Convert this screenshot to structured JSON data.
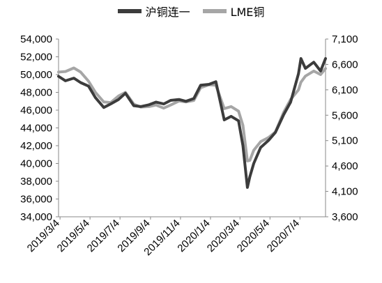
{
  "chart_data": {
    "type": "line",
    "title": "",
    "xlabel": "",
    "ylabel_left": "",
    "ylabel_right": "",
    "x_dates": [
      "2019-03-01",
      "2019-03-15",
      "2019-04-01",
      "2019-04-15",
      "2019-05-01",
      "2019-05-15",
      "2019-06-01",
      "2019-06-15",
      "2019-07-01",
      "2019-07-15",
      "2019-08-01",
      "2019-08-15",
      "2019-09-01",
      "2019-09-15",
      "2019-10-01",
      "2019-10-15",
      "2019-11-01",
      "2019-11-15",
      "2019-12-01",
      "2019-12-15",
      "2020-01-01",
      "2020-01-15",
      "2020-02-01",
      "2020-02-15",
      "2020-03-01",
      "2020-03-10",
      "2020-03-19",
      "2020-03-24",
      "2020-04-01",
      "2020-04-15",
      "2020-05-01",
      "2020-05-15",
      "2020-06-01",
      "2020-06-15",
      "2020-07-01",
      "2020-07-06",
      "2020-07-15",
      "2020-08-01",
      "2020-08-15",
      "2020-08-25"
    ],
    "x_tick_labels": [
      "2019/3/4",
      "2019/5/4",
      "2019/7/4",
      "2019/9/4",
      "2019/11/4",
      "2020/1/4",
      "2020/3/4",
      "2020/5/4",
      "2020/7/4"
    ],
    "x_tick_dates": [
      "2019-03-04",
      "2019-05-04",
      "2019-07-04",
      "2019-09-04",
      "2019-11-04",
      "2020-01-04",
      "2020-03-04",
      "2020-05-04",
      "2020-07-04"
    ],
    "left_axis": {
      "ylim": [
        34000,
        54000
      ],
      "ticks": [
        "34,000",
        "36,000",
        "38,000",
        "40,000",
        "42,000",
        "44,000",
        "46,000",
        "48,000",
        "50,000",
        "52,000",
        "54,000"
      ]
    },
    "right_axis": {
      "ylim": [
        3600,
        7100
      ],
      "ticks": [
        "3,600",
        "4,100",
        "4,600",
        "5,100",
        "5,600",
        "6,100",
        "6,600",
        "7,100"
      ]
    },
    "legend_position": "top-center",
    "series": [
      {
        "name": "沪铜连一",
        "axis": "left",
        "color": "#3c3c3c",
        "values": [
          49800,
          49300,
          49600,
          49100,
          48700,
          47400,
          46300,
          46700,
          47200,
          47900,
          46500,
          46400,
          46600,
          46900,
          46700,
          47100,
          47200,
          47000,
          47300,
          48800,
          48900,
          49200,
          44900,
          45300,
          44800,
          42000,
          37300,
          38500,
          40000,
          41800,
          42600,
          43500,
          45500,
          46900,
          50100,
          51800,
          50700,
          51400,
          50400,
          51800
        ]
      },
      {
        "name": "LME铜",
        "axis": "right",
        "color": "#a6a6a6",
        "values": [
          6450,
          6460,
          6530,
          6450,
          6270,
          6050,
          5860,
          5850,
          5980,
          6050,
          5820,
          5760,
          5770,
          5800,
          5740,
          5800,
          5880,
          5860,
          5890,
          6140,
          6200,
          6190,
          5730,
          5770,
          5680,
          5400,
          4700,
          4710,
          4910,
          5080,
          5160,
          5270,
          5660,
          5910,
          6100,
          6250,
          6370,
          6470,
          6400,
          6520
        ]
      }
    ]
  }
}
